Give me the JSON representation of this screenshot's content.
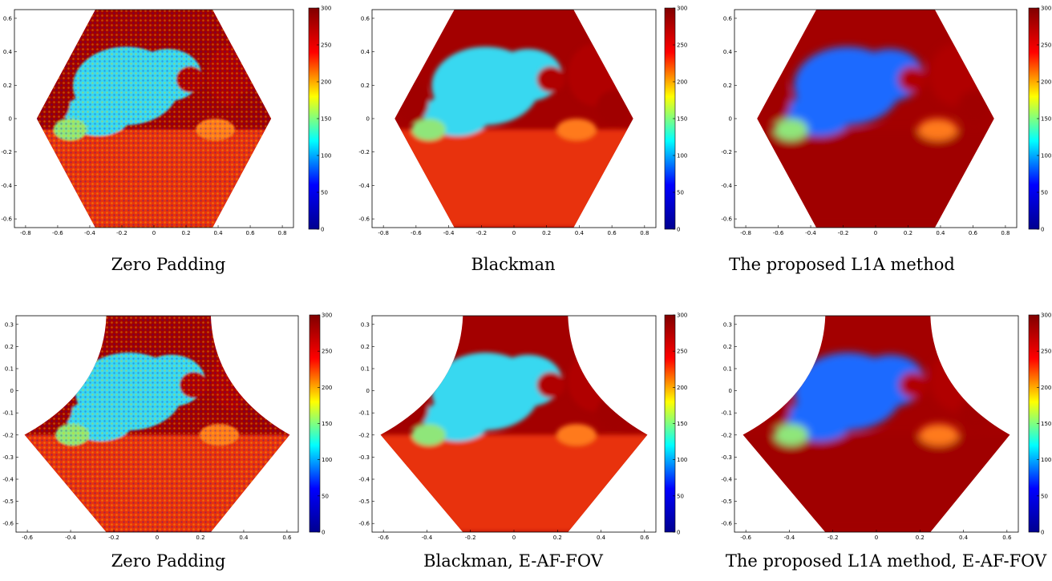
{
  "colorbar": {
    "ticks": [
      "0",
      "50",
      "100",
      "150",
      "200",
      "250",
      "300"
    ],
    "colors": [
      "#00008f",
      "#0000ff",
      "#00ffff",
      "#ffff00",
      "#ff0000",
      "#800000"
    ]
  },
  "panels": [
    {
      "caption": "Zero Padding",
      "shape": "hexagon",
      "style": "noisy",
      "xticks": [
        "-0.8",
        "-0.6",
        "-0.4",
        "-0.2",
        "0",
        "0.2",
        "0.4",
        "0.6",
        "0.8"
      ],
      "yticks": [
        "0.6",
        "0.4",
        "0.2",
        "0",
        "-0.2",
        "-0.4",
        "-0.6"
      ]
    },
    {
      "caption": "Blackman",
      "shape": "hexagon",
      "style": "smooth",
      "xticks": [
        "-0.8",
        "-0.6",
        "-0.4",
        "-0.2",
        "0",
        "0.2",
        "0.4",
        "0.6",
        "0.8"
      ],
      "yticks": [
        "0.6",
        "0.4",
        "0.2",
        "0",
        "-0.2",
        "-0.4",
        "-0.6"
      ]
    },
    {
      "caption": "The proposed L1A method",
      "shape": "hexagon",
      "style": "clean",
      "xticks": [
        "-0.8",
        "-0.6",
        "-0.4",
        "-0.2",
        "0",
        "0.2",
        "0.4",
        "0.6",
        "0.8"
      ],
      "yticks": [
        "0.6",
        "0.4",
        "0.2",
        "0",
        "-0.2",
        "-0.4",
        "-0.6"
      ]
    },
    {
      "caption": "Zero Padding",
      "shape": "concave",
      "style": "noisy",
      "xticks": [
        "-0.6",
        "-0.4",
        "-0.2",
        "0",
        "0.2",
        "0.4",
        "0.6"
      ],
      "yticks": [
        "0.3",
        "0.2",
        "0.1",
        "0",
        "-0.1",
        "-0.2",
        "-0.3",
        "-0.4",
        "-0.5",
        "-0.6"
      ]
    },
    {
      "caption": "Blackman, E-AF-FOV",
      "shape": "concave",
      "style": "smooth",
      "xticks": [
        "-0.6",
        "-0.4",
        "-0.2",
        "0",
        "0.2",
        "0.4",
        "0.6"
      ],
      "yticks": [
        "0.3",
        "0.2",
        "0.1",
        "0",
        "-0.1",
        "-0.2",
        "-0.3",
        "-0.4",
        "-0.5",
        "-0.6"
      ]
    },
    {
      "caption": "The proposed L1A method, E-AF-FOV",
      "shape": "concave",
      "style": "clean",
      "xticks": [
        "-0.6",
        "-0.4",
        "-0.2",
        "0",
        "0.2",
        "0.4",
        "0.6"
      ],
      "yticks": [
        "0.3",
        "0.2",
        "0.1",
        "0",
        "-0.1",
        "-0.2",
        "-0.3",
        "-0.4",
        "-0.5",
        "-0.6"
      ]
    }
  ]
}
